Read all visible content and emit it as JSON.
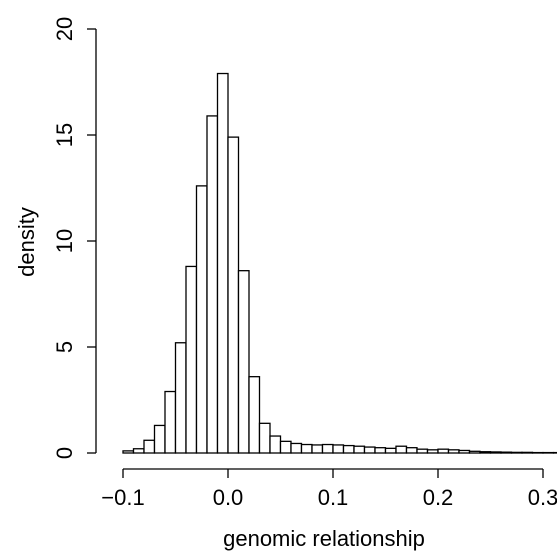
{
  "chart_data": {
    "type": "bar",
    "title": "",
    "xlabel": "genomic relationship",
    "ylabel": "density",
    "xlim": [
      -0.105,
      0.32
    ],
    "ylim": [
      0,
      20
    ],
    "grid": false,
    "legend": "none",
    "bin_width": 0.01,
    "bin_start": -0.1,
    "values": [
      0.1,
      0.2,
      0.6,
      1.3,
      2.9,
      5.2,
      8.8,
      12.6,
      15.9,
      17.9,
      14.9,
      8.6,
      3.6,
      1.4,
      0.8,
      0.55,
      0.45,
      0.4,
      0.38,
      0.4,
      0.38,
      0.35,
      0.32,
      0.28,
      0.25,
      0.22,
      0.32,
      0.25,
      0.18,
      0.15,
      0.18,
      0.15,
      0.12,
      0.08,
      0.06,
      0.05,
      0.04,
      0.03,
      0.03,
      0.02,
      0.02,
      0.02,
      0.01
    ],
    "x_ticks": [
      -0.1,
      0.0,
      0.1,
      0.2,
      0.3
    ],
    "x_tick_labels": [
      "−0.1",
      "0.0",
      "0.1",
      "0.2",
      "0.3"
    ],
    "y_ticks": [
      0,
      5,
      10,
      15,
      20
    ],
    "y_tick_labels": [
      "0",
      "5",
      "10",
      "15",
      "20"
    ],
    "colors": {
      "bar_fill": "#ffffff",
      "bar_stroke": "#000000",
      "axis": "#000000"
    }
  }
}
